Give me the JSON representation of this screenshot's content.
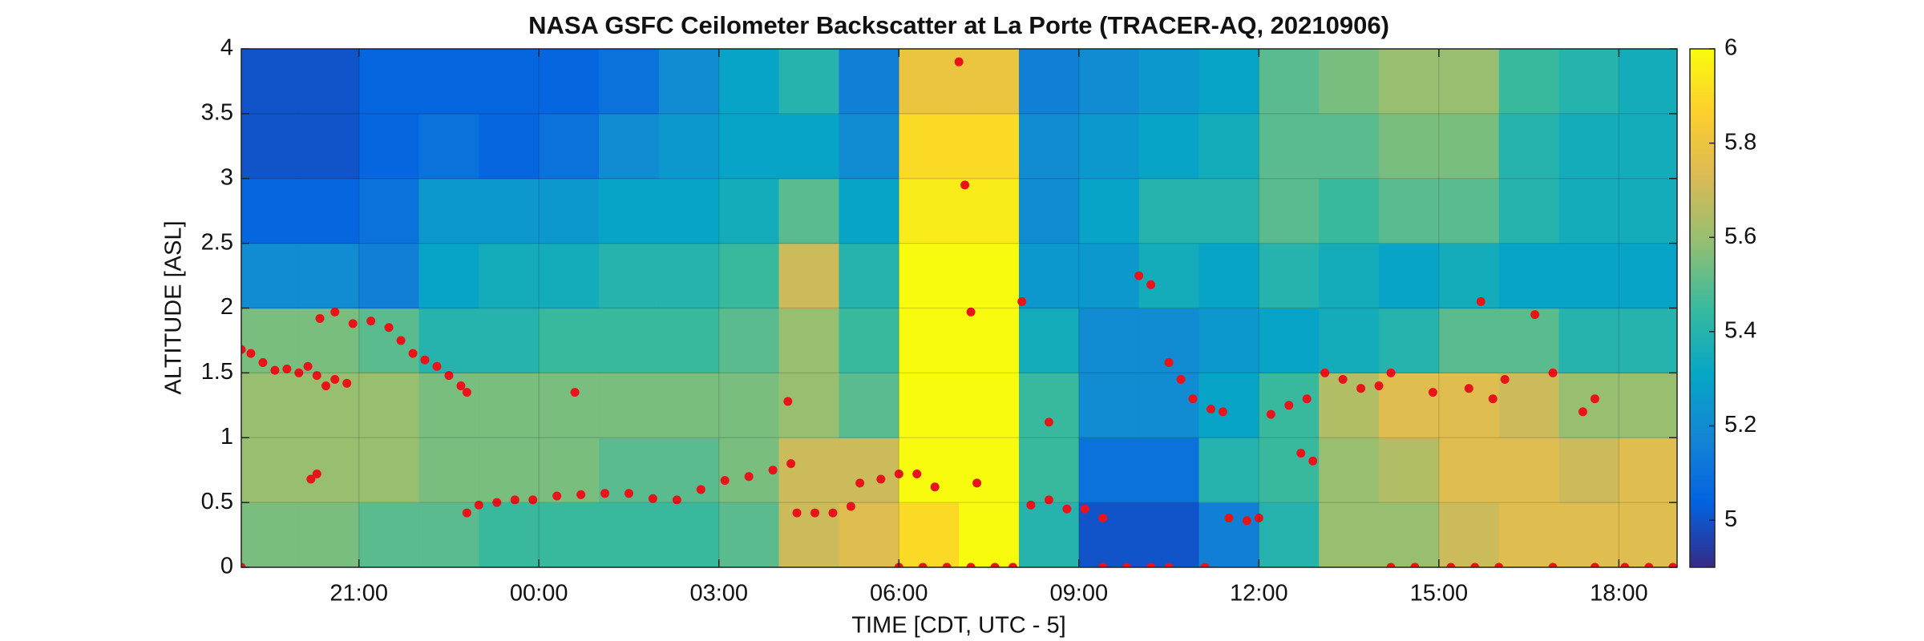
{
  "chart_data": {
    "type": "heatmap",
    "title": "NASA GSFC Ceilometer Backscatter at La Porte (TRACER-AQ, 20210906)",
    "xlabel": "TIME [CDT, UTC - 5]",
    "ylabel": "ALTITUDE [ASL]",
    "x": [
      -4.5,
      -3.5,
      -2.5,
      -1.5,
      -0.5,
      0.5,
      1.5,
      2.5,
      3.5,
      4.5,
      5.5,
      6.5,
      7.5,
      8.5,
      9.5,
      10.5,
      11.5,
      12.5,
      13.5,
      14.5,
      15.5,
      16.5,
      17.5,
      18.5
    ],
    "y": [
      0.25,
      0.75,
      1.25,
      1.75,
      2.25,
      2.75,
      3.25,
      3.75
    ],
    "z": [
      [
        5.55,
        5.55,
        5.5,
        5.5,
        5.45,
        5.45,
        5.45,
        5.45,
        5.5,
        5.7,
        5.75,
        5.9,
        6,
        5.4,
        5.0,
        5.0,
        5.15,
        5.4,
        5.6,
        5.6,
        5.7,
        5.75,
        5.75,
        5.75
      ],
      [
        5.6,
        5.6,
        5.6,
        5.55,
        5.55,
        5.55,
        5.5,
        5.5,
        5.55,
        5.7,
        5.7,
        6,
        6,
        5.45,
        5.1,
        5.1,
        5.4,
        5.45,
        5.6,
        5.65,
        5.75,
        5.75,
        5.7,
        5.75
      ],
      [
        5.6,
        5.6,
        5.6,
        5.55,
        5.55,
        5.55,
        5.55,
        5.55,
        5.55,
        5.6,
        5.5,
        6,
        6,
        5.45,
        5.2,
        5.2,
        5.3,
        5.45,
        5.65,
        5.75,
        5.75,
        5.7,
        5.6,
        5.6
      ],
      [
        5.55,
        5.55,
        5.5,
        5.4,
        5.4,
        5.45,
        5.45,
        5.45,
        5.5,
        5.6,
        5.45,
        6,
        6,
        5.35,
        5.2,
        5.2,
        5.25,
        5.3,
        5.35,
        5.4,
        5.5,
        5.5,
        5.4,
        5.4
      ],
      [
        5.2,
        5.2,
        5.15,
        5.3,
        5.35,
        5.35,
        5.4,
        5.4,
        5.45,
        5.7,
        5.4,
        6,
        6,
        5.25,
        5.25,
        5.35,
        5.3,
        5.4,
        5.35,
        5.3,
        5.35,
        5.3,
        5.3,
        5.3
      ],
      [
        5.05,
        5.05,
        5.1,
        5.25,
        5.25,
        5.25,
        5.3,
        5.3,
        5.35,
        5.5,
        5.3,
        5.95,
        5.95,
        5.2,
        5.3,
        5.4,
        5.4,
        5.5,
        5.45,
        5.5,
        5.5,
        5.4,
        5.35,
        5.35
      ],
      [
        5.0,
        5.0,
        5.05,
        5.1,
        5.05,
        5.1,
        5.2,
        5.25,
        5.3,
        5.3,
        5.2,
        5.9,
        5.9,
        5.2,
        5.25,
        5.3,
        5.35,
        5.5,
        5.5,
        5.55,
        5.55,
        5.4,
        5.35,
        5.35
      ],
      [
        5.0,
        5.0,
        5.05,
        5.05,
        5.05,
        5.05,
        5.1,
        5.2,
        5.3,
        5.4,
        5.15,
        5.8,
        5.8,
        5.15,
        5.2,
        5.25,
        5.3,
        5.5,
        5.55,
        5.6,
        5.6,
        5.45,
        5.4,
        5.35
      ]
    ],
    "xlim": [
      -4.96,
      18.97
    ],
    "ylim": [
      0,
      4
    ],
    "xticks": [
      {
        "value": -3,
        "label": "21:00"
      },
      {
        "value": 0,
        "label": "00:00"
      },
      {
        "value": 3,
        "label": "03:00"
      },
      {
        "value": 6,
        "label": "06:00"
      },
      {
        "value": 9,
        "label": "09:00"
      },
      {
        "value": 12,
        "label": "12:00"
      },
      {
        "value": 15,
        "label": "15:00"
      },
      {
        "value": 18,
        "label": "18:00"
      }
    ],
    "yticks": [
      0,
      0.5,
      1,
      1.5,
      2,
      2.5,
      3,
      3.5,
      4
    ],
    "clim": [
      4.9,
      6
    ],
    "cticks": [
      5,
      5.2,
      5.4,
      5.6,
      5.8,
      6
    ],
    "colormap": [
      "#352a87",
      "#0363e1",
      "#1485d4",
      "#06a7c6",
      "#38b99e",
      "#92bf73",
      "#d9ba56",
      "#fcce2e",
      "#f9fb0e"
    ],
    "grid": true,
    "overlay": {
      "type": "scatter",
      "color": "#e8141a",
      "x": [
        -4.96,
        -4.8,
        -4.6,
        -4.4,
        -4.2,
        -4.0,
        -3.85,
        -3.7,
        -3.55,
        -3.4,
        -3.2,
        -3.8,
        -3.7,
        -3.65,
        -3.4,
        -3.1,
        -2.8,
        -2.5,
        -2.3,
        -2.1,
        -1.9,
        -1.7,
        -1.5,
        -1.3,
        -1.2,
        -1.2,
        -1.0,
        -0.7,
        -0.4,
        -0.1,
        0.3,
        0.7,
        1.1,
        1.5,
        1.9,
        2.3,
        2.7,
        3.1,
        3.5,
        3.9,
        4.2,
        0.6,
        4.15,
        4.3,
        4.6,
        4.9,
        5.2,
        5.35,
        5.7,
        6.0,
        6.3,
        6.6,
        7.0,
        7.1,
        7.2,
        7.3,
        8.05,
        8.2,
        8.5,
        8.5,
        8.8,
        9.1,
        9.4,
        10.0,
        10.2,
        10.5,
        10.7,
        10.9,
        11.2,
        11.4,
        11.5,
        11.8,
        12.0,
        12.2,
        12.5,
        12.8,
        12.7,
        12.9,
        13.1,
        13.4,
        13.7,
        14.0,
        14.2,
        14.9,
        15.7,
        15.5,
        15.9,
        16.1,
        16.6,
        16.9,
        17.4,
        17.6,
        -4.96,
        6.0,
        6.4,
        6.8,
        7.2,
        7.6,
        7.9,
        9.4,
        9.8,
        10.2,
        10.5,
        11.1,
        14.2,
        14.6,
        15.2,
        15.6,
        16.0,
        16.9,
        17.6,
        18.1,
        18.5,
        18.9
      ],
      "y": [
        1.68,
        1.65,
        1.58,
        1.52,
        1.53,
        1.5,
        1.55,
        1.48,
        1.4,
        1.45,
        1.42,
        0.68,
        0.72,
        1.92,
        1.97,
        1.88,
        1.9,
        1.85,
        1.75,
        1.65,
        1.6,
        1.55,
        1.48,
        1.4,
        1.35,
        0.42,
        0.48,
        0.5,
        0.52,
        0.52,
        0.55,
        0.56,
        0.57,
        0.57,
        0.53,
        0.52,
        0.6,
        0.67,
        0.7,
        0.75,
        0.8,
        1.35,
        1.28,
        0.42,
        0.42,
        0.42,
        0.47,
        0.65,
        0.68,
        0.72,
        0.72,
        0.62,
        3.9,
        2.95,
        1.97,
        0.65,
        2.05,
        0.48,
        0.52,
        1.12,
        0.45,
        0.45,
        0.38,
        2.25,
        2.18,
        1.58,
        1.45,
        1.3,
        1.22,
        1.2,
        0.38,
        0.36,
        0.38,
        1.18,
        1.25,
        1.3,
        0.88,
        0.82,
        1.5,
        1.45,
        1.38,
        1.4,
        1.5,
        1.35,
        2.05,
        1.38,
        1.3,
        1.45,
        1.95,
        1.5,
        1.2,
        1.3,
        0,
        0,
        0,
        0,
        0,
        0,
        0,
        0,
        0,
        0,
        0,
        0,
        0,
        0,
        0,
        0,
        0,
        0,
        0,
        0,
        0,
        0
      ]
    }
  }
}
